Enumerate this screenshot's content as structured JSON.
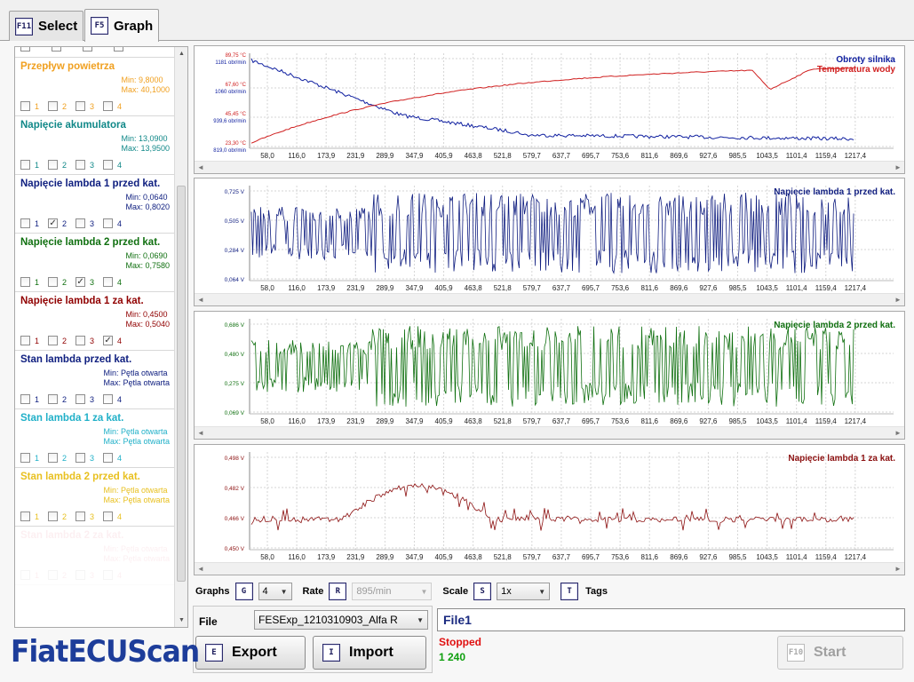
{
  "tabs": [
    {
      "key": "F11",
      "label": "Select"
    },
    {
      "key": "F5",
      "label": "Graph"
    }
  ],
  "sensors": [
    {
      "name": "Przepływ powietrza",
      "color": "#f0a020",
      "min": "Min: 9,8000",
      "max": "Max: 40,1000",
      "checks": [
        false,
        false,
        false,
        false
      ]
    },
    {
      "name": "Napięcie akumulatora",
      "color": "#108888",
      "min": "Min: 13,0900",
      "max": "Max: 13,9500",
      "checks": [
        false,
        false,
        false,
        false
      ]
    },
    {
      "name": "Napięcie lambda 1 przed kat.",
      "color": "#102080",
      "min": "Min: 0,0640",
      "max": "Max: 0,8020",
      "checks": [
        false,
        true,
        false,
        false
      ]
    },
    {
      "name": "Napięcie lambda 2 przed kat.",
      "color": "#107010",
      "min": "Min: 0,0690",
      "max": "Max: 0,7580",
      "checks": [
        false,
        false,
        true,
        false
      ]
    },
    {
      "name": "Napięcie lambda 1 za kat.",
      "color": "#900000",
      "min": "Min: 0,4500",
      "max": "Max: 0,5040",
      "checks": [
        false,
        false,
        false,
        true
      ]
    },
    {
      "name": "Stan lambda przed kat.",
      "color": "#102080",
      "min": "Min: Pętla otwarta",
      "max": "Max: Pętla otwarta",
      "checks": [
        false,
        false,
        false,
        false
      ]
    },
    {
      "name": "Stan lambda 1 za kat.",
      "color": "#20b0c8",
      "min": "Min: Pętla otwarta",
      "max": "Max: Pętla otwarta",
      "checks": [
        false,
        false,
        false,
        false
      ]
    },
    {
      "name": "Stan lambda 2 przed kat.",
      "color": "#e8c020",
      "min": "Min: Pętla otwarta",
      "max": "Max: Pętla otwarta",
      "checks": [
        false,
        false,
        false,
        false
      ]
    },
    {
      "name": "Stan lambda 2 za kat.",
      "color": "#e04060",
      "min": "Min: Pętla otwarta",
      "max": "Max: Pętla otwarta",
      "checks": [
        false,
        false,
        false,
        false
      ]
    }
  ],
  "checkbox_labels": [
    "1",
    "2",
    "3",
    "4"
  ],
  "chart_data": [
    {
      "type": "line",
      "x_ticks": [
        "58,0",
        "116,0",
        "173,9",
        "231,9",
        "289,9",
        "347,9",
        "405,9",
        "463,8",
        "521,8",
        "579,7",
        "637,7",
        "695,7",
        "753,6",
        "811,6",
        "869,6",
        "927,6",
        "985,5",
        "1043,5",
        "1101,4",
        "1159,4",
        "1217,4"
      ],
      "y_ticks_left": [
        {
          "top": "89,75 °C",
          "bottom": "1181 obr/min"
        },
        {
          "top": "67,60 °C",
          "bottom": "1060 obr/min"
        },
        {
          "top": "45,45 °C",
          "bottom": "939,6 obr/min"
        },
        {
          "top": "23,30 °C",
          "bottom": "819,0 obr/min"
        }
      ],
      "series": [
        {
          "name": "Obroty silnika",
          "color": "#1020a0"
        },
        {
          "name": "Temperatura wody",
          "color": "#d02020"
        }
      ]
    },
    {
      "type": "line",
      "x_ticks": [
        "58,0",
        "116,0",
        "173,9",
        "231,9",
        "289,9",
        "347,9",
        "405,9",
        "463,8",
        "521,8",
        "579,7",
        "637,7",
        "695,7",
        "753,6",
        "811,6",
        "869,6",
        "927,6",
        "985,5",
        "1043,5",
        "1101,4",
        "1159,4",
        "1217,4"
      ],
      "y_ticks": [
        "0,725 V",
        "0,505 V",
        "0,284 V",
        "0,064 V"
      ],
      "series": [
        {
          "name": "Napięcie lambda 1 przed kat.",
          "color": "#101e80"
        }
      ]
    },
    {
      "type": "line",
      "x_ticks": [
        "58,0",
        "116,0",
        "173,9",
        "231,9",
        "289,9",
        "347,9",
        "405,9",
        "463,8",
        "521,8",
        "579,7",
        "637,7",
        "695,7",
        "753,6",
        "811,6",
        "869,6",
        "927,6",
        "985,5",
        "1043,5",
        "1101,4",
        "1159,4",
        "1217,4"
      ],
      "y_ticks": [
        "0,686 V",
        "0,480 V",
        "0,275 V",
        "0,069 V"
      ],
      "series": [
        {
          "name": "Napięcie lambda 2 przed kat.",
          "color": "#107010"
        }
      ]
    },
    {
      "type": "line",
      "x_ticks": [
        "58,0",
        "116,0",
        "173,9",
        "231,9",
        "289,9",
        "347,9",
        "405,9",
        "463,8",
        "521,8",
        "579,7",
        "637,7",
        "695,7",
        "753,6",
        "811,6",
        "869,6",
        "927,6",
        "985,5",
        "1043,5",
        "1101,4",
        "1159,4",
        "1217,4"
      ],
      "y_ticks": [
        "0,498 V",
        "0,482 V",
        "0,466 V",
        "0,450 V"
      ],
      "series": [
        {
          "name": "Napięcie lambda 1 za kat.",
          "color": "#8c1010"
        }
      ]
    }
  ],
  "controls": {
    "graphs_label": "Graphs",
    "graphs_key": "G",
    "graphs_value": "4",
    "rate_label": "Rate",
    "rate_key": "R",
    "rate_value": "895/min",
    "scale_label": "Scale",
    "scale_key": "S",
    "scale_value": "1x",
    "tags_key": "T",
    "tags_label": "Tags"
  },
  "file": {
    "label": "File",
    "selected": "FESExp_1210310903_Alfa R",
    "export_key": "E",
    "export_label": "Export",
    "import_key": "I",
    "import_label": "Import",
    "name": "File1"
  },
  "status": {
    "state": "Stopped",
    "state_color": "#e01010",
    "count": "1 240",
    "count_color": "#10a010"
  },
  "start": {
    "key": "F10",
    "label": "Start"
  },
  "logo": "FiatECUScan"
}
